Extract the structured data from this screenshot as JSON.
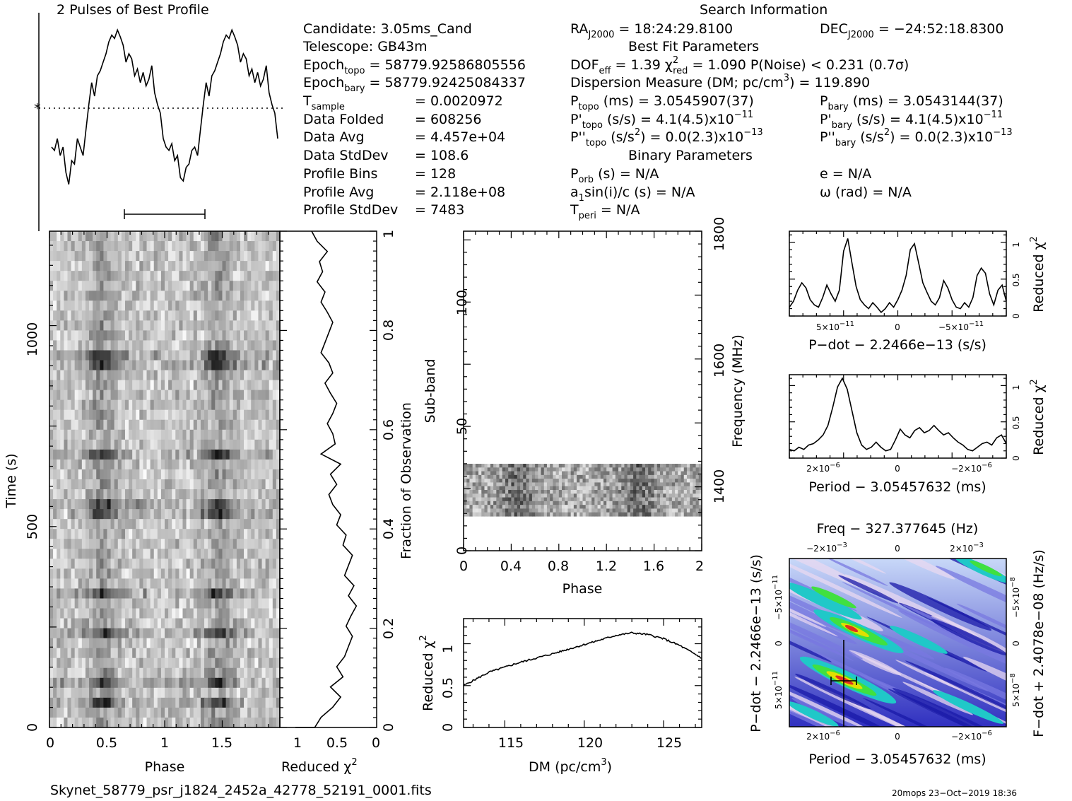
{
  "profile": {
    "title": "2 Pulses of Best Profile",
    "values": [
      0.3,
      0.28,
      0.35,
      0.25,
      0.3,
      0.15,
      0.08,
      0.22,
      0.2,
      0.35,
      0.3,
      0.25,
      0.4,
      0.55,
      0.68,
      0.6,
      0.72,
      0.75,
      0.8,
      0.85,
      0.92,
      0.96,
      0.94,
      0.99,
      0.95,
      0.9,
      0.8,
      0.85,
      0.82,
      0.72,
      0.76,
      0.68,
      0.74,
      0.66,
      0.7,
      0.78,
      0.62,
      0.55,
      0.5,
      0.35,
      0.3,
      0.28,
      0.32,
      0.22,
      0.25,
      0.12,
      0.1,
      0.18,
      0.2,
      0.28,
      0.3,
      0.25,
      0.4,
      0.55,
      0.68,
      0.6,
      0.72,
      0.75,
      0.8,
      0.85,
      0.92,
      0.96,
      0.94,
      0.99,
      0.95,
      0.9,
      0.8,
      0.85,
      0.82,
      0.72,
      0.76,
      0.68,
      0.74,
      0.66,
      0.7,
      0.78,
      0.62,
      0.55,
      0.5,
      0.35
    ],
    "mean_marker": "*"
  },
  "info": {
    "search_title": "Search Information",
    "col1": [
      {
        "label": "Candidate:  3.05ms_Cand"
      },
      {
        "label": "Telescope:  GB43m"
      },
      {
        "label": "Epoch",
        "sub": "topo",
        "rest": " = 58779.92586805556"
      },
      {
        "label": "Epoch",
        "sub": "bary",
        "rest": " = 58779.92425084337"
      },
      {
        "label": "T",
        "sub": "sample",
        "rest": "",
        "value": "=   0.0020972"
      },
      {
        "label": "Data Folded",
        "value": "=   608256"
      },
      {
        "label": "Data Avg",
        "value": "=   4.457e+04"
      },
      {
        "label": "Data StdDev",
        "value": "=   108.6"
      },
      {
        "label": "Profile Bins",
        "value": "=   128"
      },
      {
        "label": "Profile Avg",
        "value": "=   2.118e+08"
      },
      {
        "label": "Profile StdDev",
        "value": "=   7483"
      }
    ],
    "ra": "RA",
    "ra_sub": "J2000",
    "ra_val": " = 18:24:29.8100",
    "dec": "DEC",
    "dec_sub": "J2000",
    "dec_val": " = −24:52:18.8300",
    "best_fit_title": "Best Fit Parameters",
    "dof_line_a": "DOF",
    "dof_sub": "eff",
    "dof_line_b": " = 1.39   χ",
    "chi_sup": "2",
    "chi_sub": "red",
    "dof_line_c": " = 1.090   P(Noise) < 0.231   (0.7σ)",
    "dm_line": "Dispersion Measure (DM; pc/cm",
    "dm_sup": "3",
    "dm_val": ") = 119.890",
    "ptopo": "P",
    "ptopo_sub": "topo",
    "ptopo_val": " (ms) =  3.0545907(37)",
    "pbary": "P",
    "pbary_sub": "bary",
    "pbary_val": " (ms) =  3.0543144(37)",
    "pdtopo": "P'",
    "pdtopo_sub": "topo",
    "pdtopo_val": " (s/s) =  4.1(4.5)x10",
    "pdtopo_exp": "−11",
    "pdbary": "P'",
    "pdbary_sub": "bary",
    "pdbary_val": " (s/s) =  4.1(4.5)x10",
    "pdbary_exp": "−11",
    "pddtopo": "P''",
    "pddtopo_sub": "topo",
    "pddtopo_val": " (s/s",
    "pddtopo_sup2": "2",
    "pddtopo_rest": ") = 0.0(2.3)x10",
    "pddtopo_exp": "−13",
    "pddbary": "P''",
    "pddbary_sub": "bary",
    "pddbary_val": " (s/s",
    "pddbary_sup2": "2",
    "pddbary_rest": ") = 0.0(2.3)x10",
    "pddbary_exp": "−13",
    "binary_title": "Binary Parameters",
    "porb": "P",
    "porb_sub": "orb",
    "porb_val": " (s) = N/A",
    "a1a": "a",
    "a1_sub": "1",
    "a1b": "sin(i)/c (s) = N/A",
    "tperi": "T",
    "tperi_sub": "peri",
    "tperi_val": " = N/A",
    "ecc": "e = N/A",
    "omega": "ω (rad) = N/A"
  },
  "time_phase": {
    "xlabel": "Phase",
    "ylabel": "Time (s)",
    "xticks": [
      "0",
      "0.5",
      "1",
      "1.5"
    ],
    "yticks": [
      "0",
      "500",
      "1000"
    ]
  },
  "time_chi": {
    "xlabel": "Reduced χ",
    "xlabel_sup": "2",
    "ylabel": "Fraction of Observation",
    "xticks": [
      "1",
      "0.5",
      "0"
    ],
    "yticks": [
      "0",
      "0.2",
      "0.4",
      "0.6",
      "0.8",
      "1"
    ],
    "values": [
      0.78,
      0.7,
      0.55,
      0.45,
      0.58,
      0.42,
      0.5,
      0.4,
      0.35,
      0.3,
      0.38,
      0.32,
      0.25,
      0.35,
      0.28,
      0.4,
      0.35,
      0.3,
      0.42,
      0.38,
      0.5,
      0.45,
      0.55,
      0.6,
      0.5,
      0.58,
      0.45,
      0.7,
      0.52,
      0.55,
      0.62,
      0.55,
      0.5,
      0.58,
      0.65,
      0.55,
      0.6,
      0.7,
      0.65,
      0.6,
      0.55,
      0.62,
      0.7,
      0.65,
      0.75,
      0.68,
      0.72,
      0.62,
      0.75,
      0.82
    ]
  },
  "subband": {
    "xlabel": "Phase",
    "ylabel": "Sub-band",
    "right_label": "Frequency (MHz)",
    "xticks": [
      "0",
      "0.4",
      "0.8",
      "1.2",
      "1.6",
      "2"
    ],
    "yticks": [
      "0",
      "50",
      "100"
    ],
    "freq_ticks": [
      "1400",
      "1600",
      "1800"
    ]
  },
  "dm_plot": {
    "xlabel": "DM (pc/cm",
    "xlabel_sup": "3",
    "xlabel_end": ")",
    "ylabel": "Reduced χ",
    "ylabel_sup": "2",
    "xticks": [
      "115",
      "120",
      "125"
    ],
    "yticks": [
      "0",
      "0.5",
      "1"
    ]
  },
  "pdot_plot": {
    "xlabel": "P−dot − 2.2466e−13 (s/s)",
    "ylabel": "Reduced χ",
    "ylabel_sup": "2",
    "xticks": [
      {
        "m": "5×10",
        "e": "−11"
      },
      {
        "m": "0",
        "e": ""
      },
      {
        "m": "−5×10",
        "e": "−11"
      }
    ],
    "yticks": [
      "0",
      "0.5",
      "1"
    ],
    "values": [
      0.12,
      0.2,
      0.35,
      0.45,
      0.38,
      0.22,
      0.15,
      0.12,
      0.25,
      0.42,
      0.3,
      0.2,
      0.35,
      0.88,
      1.05,
      0.72,
      0.4,
      0.22,
      0.15,
      0.1,
      0.18,
      0.12,
      0.05,
      0.1,
      0.18,
      0.12,
      0.22,
      0.35,
      0.55,
      0.9,
      0.98,
      0.72,
      0.45,
      0.32,
      0.2,
      0.15,
      0.25,
      0.48,
      0.38,
      0.22,
      0.12,
      0.1,
      0.18,
      0.12,
      0.25,
      0.55,
      0.65,
      0.58,
      0.3,
      0.15,
      0.35,
      0.42,
      0.2
    ]
  },
  "period_plot": {
    "xlabel": "Period − 3.05457632 (ms)",
    "ylabel": "Reduced χ",
    "ylabel_sup": "2",
    "xticks": [
      {
        "m": "2×10",
        "e": "−6"
      },
      {
        "m": "0",
        "e": ""
      },
      {
        "m": "−2×10",
        "e": "−6"
      }
    ],
    "yticks": [
      "0",
      "0.5",
      "1"
    ],
    "values": [
      0.12,
      0.1,
      0.15,
      0.12,
      0.18,
      0.2,
      0.25,
      0.32,
      0.45,
      0.7,
      0.98,
      1.1,
      0.95,
      0.65,
      0.35,
      0.18,
      0.12,
      0.15,
      0.22,
      0.15,
      0.1,
      0.12,
      0.25,
      0.4,
      0.32,
      0.28,
      0.38,
      0.42,
      0.35,
      0.38,
      0.45,
      0.38,
      0.32,
      0.35,
      0.28,
      0.22,
      0.18,
      0.12,
      0.1,
      0.15,
      0.2,
      0.22,
      0.18,
      0.28,
      0.32,
      0.2
    ]
  },
  "ppdot_plot": {
    "top_label": "Freq − 327.377645 (Hz)",
    "top_ticks": [
      {
        "m": "−2×10",
        "e": "−3"
      },
      {
        "m": "0",
        "e": ""
      },
      {
        "m": "2×10",
        "e": "−3"
      }
    ],
    "xlabel": "Period − 3.05457632 (ms)",
    "xticks": [
      {
        "m": "2×10",
        "e": "−6"
      },
      {
        "m": "0",
        "e": ""
      },
      {
        "m": "−2×10",
        "e": "−6"
      }
    ],
    "ylabel": "P−dot − 2.2466e−13 (s/s)",
    "yticks": [
      {
        "m": "5×10",
        "e": "−11"
      },
      {
        "m": "0",
        "e": ""
      },
      {
        "m": "−5×10",
        "e": "−11"
      }
    ],
    "right_label": "F−dot + 2.4078e−08 (Hz/s)",
    "right_ticks": [
      {
        "m": "−5×10",
        "e": "−8"
      },
      {
        "m": "0",
        "e": ""
      },
      {
        "m": "5×10",
        "e": "−8"
      }
    ],
    "colors": {
      "low": "#1a1aa8",
      "mid": "#7878e0",
      "pale": "#e8d8f0",
      "cyan": "#20c8c8",
      "green": "#40e040",
      "yellow": "#e0e000",
      "red": "#e03020"
    }
  },
  "footer": {
    "filename": "Skynet_58779_psr_j1824_2452a_42778_52191_0001.fits",
    "stamp": "20mops 23−Oct−2019 18:36"
  },
  "chart_data": [
    {
      "type": "line",
      "title": "2 Pulses of Best Profile",
      "xlabel": "",
      "ylabel": "",
      "series": [
        {
          "values": "see profile.values (two pulses, 0-2 phase)"
        }
      ]
    },
    {
      "type": "heatmap",
      "xlabel": "Phase",
      "ylabel": "Time (s)",
      "xlim": [
        0,
        2
      ],
      "ylim": [
        0,
        1220
      ]
    },
    {
      "type": "line",
      "xlabel": "Reduced χ2",
      "ylabel": "Fraction of Observation",
      "xlim": [
        1,
        0
      ],
      "ylim": [
        0,
        1
      ]
    },
    {
      "type": "heatmap",
      "xlabel": "Phase",
      "ylabel": "Sub-band",
      "xlim": [
        0,
        2
      ],
      "ylim": [
        0,
        128
      ]
    },
    {
      "type": "line",
      "xlabel": "DM (pc/cm3)",
      "ylabel": "Reduced χ2",
      "x": [
        112.4,
        114,
        116,
        118,
        120,
        122,
        123,
        124,
        125,
        126,
        127.4
      ],
      "y": [
        0.5,
        0.66,
        0.78,
        0.88,
        0.99,
        1.1,
        1.13,
        1.11,
        1.06,
        0.98,
        0.83
      ],
      "xlim": [
        112.4,
        127.4
      ],
      "ylim": [
        0,
        1.3
      ]
    },
    {
      "type": "line",
      "xlabel": "P-dot − 2.2466e−13 (s/s)",
      "ylabel": "Reduced χ2",
      "ylim": [
        0,
        1.15
      ]
    },
    {
      "type": "line",
      "xlabel": "Period − 3.05457632 (ms)",
      "ylabel": "Reduced χ2",
      "ylim": [
        0,
        1.15
      ]
    },
    {
      "type": "heatmap",
      "xlabel": "Period − 3.05457632 (ms)",
      "ylabel": "P-dot − 2.2466e−13 (s/s)"
    }
  ]
}
